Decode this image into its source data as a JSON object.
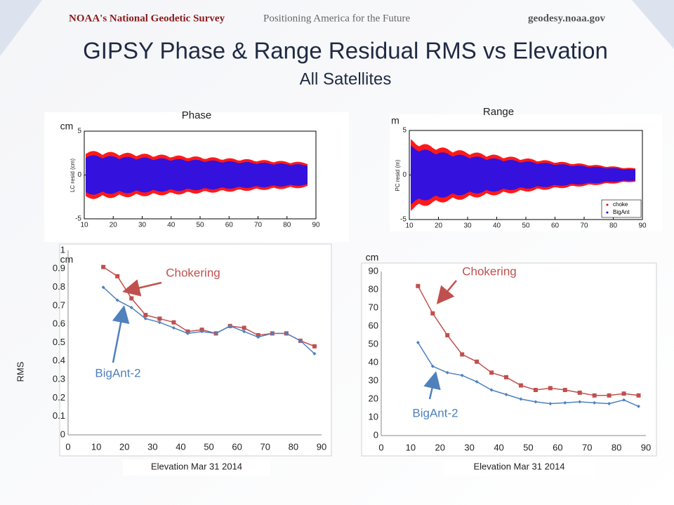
{
  "header": {
    "org": "NOAA's National Geodetic Survey",
    "motto": "Positioning America for the Future",
    "site": "geodesy.noaa.gov"
  },
  "title": "GIPSY Phase & Range Residual RMS vs Elevation",
  "subtitle": "All Satellites",
  "chart_data": [
    {
      "type": "scatter",
      "title": "Phase",
      "unit": "cm",
      "ylabel": "LC resid (cm)",
      "colors": [
        "#ff0000",
        "#1010ff"
      ],
      "xlim": [
        10,
        90
      ],
      "xticks": [
        10,
        20,
        30,
        40,
        50,
        60,
        70,
        80,
        90
      ],
      "ylim": [
        -5,
        5
      ],
      "yticks": [
        -5,
        0,
        5
      ]
    },
    {
      "type": "scatter",
      "title": "Range",
      "unit": "m",
      "ylabel": "PC resid (m)",
      "series": [
        {
          "name": "choke",
          "color": "#ff0000"
        },
        {
          "name": "BigAnt",
          "color": "#1010ff"
        }
      ],
      "legend": "lower right",
      "xlim": [
        10,
        90
      ],
      "xticks": [
        10,
        20,
        30,
        40,
        50,
        60,
        70,
        80,
        90
      ],
      "ylim": [
        -5,
        5
      ],
      "yticks": [
        -5,
        0,
        5
      ]
    },
    {
      "type": "line",
      "unit": "cm",
      "ylabel": "RMS",
      "xlabel": "Elevation  Mar 31 2014",
      "x": [
        12.5,
        17.5,
        22.5,
        27.5,
        32.5,
        37.5,
        42.5,
        47.5,
        52.5,
        57.5,
        62.5,
        67.5,
        72.5,
        77.5,
        82.5,
        87.5
      ],
      "series": [
        {
          "name": "Chokering",
          "color": "#c0504d",
          "values": [
            0.91,
            0.86,
            0.74,
            0.65,
            0.63,
            0.61,
            0.56,
            0.57,
            0.55,
            0.59,
            0.58,
            0.54,
            0.55,
            0.55,
            0.51,
            0.48
          ]
        },
        {
          "name": "BigAnt-2",
          "color": "#4f81bd",
          "values": [
            0.8,
            0.73,
            0.69,
            0.63,
            0.61,
            0.58,
            0.55,
            0.56,
            0.55,
            0.59,
            0.56,
            0.53,
            0.55,
            0.55,
            0.51,
            0.44
          ]
        }
      ],
      "xlim": [
        0,
        90
      ],
      "xticks": [
        0,
        10,
        20,
        30,
        40,
        50,
        60,
        70,
        80,
        90
      ],
      "ylim": [
        0,
        1
      ],
      "yticks": [
        0,
        0.1,
        0.2,
        0.3,
        0.4,
        0.5,
        0.6,
        0.7,
        0.8,
        0.9,
        1
      ]
    },
    {
      "type": "line",
      "unit": "cm",
      "xlabel": "Elevation  Mar 31 2014",
      "x": [
        12.5,
        17.5,
        22.5,
        27.5,
        32.5,
        37.5,
        42.5,
        47.5,
        52.5,
        57.5,
        62.5,
        67.5,
        72.5,
        77.5,
        82.5,
        87.5
      ],
      "series": [
        {
          "name": "Chokering",
          "color": "#c0504d",
          "values": [
            82,
            67,
            55,
            44.5,
            40.5,
            34.5,
            32,
            27.5,
            25,
            26,
            25,
            23.5,
            22,
            22,
            23,
            22
          ]
        },
        {
          "name": "BigAnt-2",
          "color": "#4f81bd",
          "values": [
            51,
            38,
            34.5,
            33,
            29.5,
            25,
            22.5,
            20,
            18.5,
            17.5,
            18,
            18.5,
            18,
            17.5,
            19.5,
            16
          ]
        }
      ],
      "xlim": [
        0,
        90
      ],
      "xticks": [
        0,
        10,
        20,
        30,
        40,
        50,
        60,
        70,
        80,
        90
      ],
      "ylim": [
        0,
        90
      ],
      "yticks": [
        0,
        10,
        20,
        30,
        40,
        50,
        60,
        70,
        80,
        90
      ]
    }
  ]
}
